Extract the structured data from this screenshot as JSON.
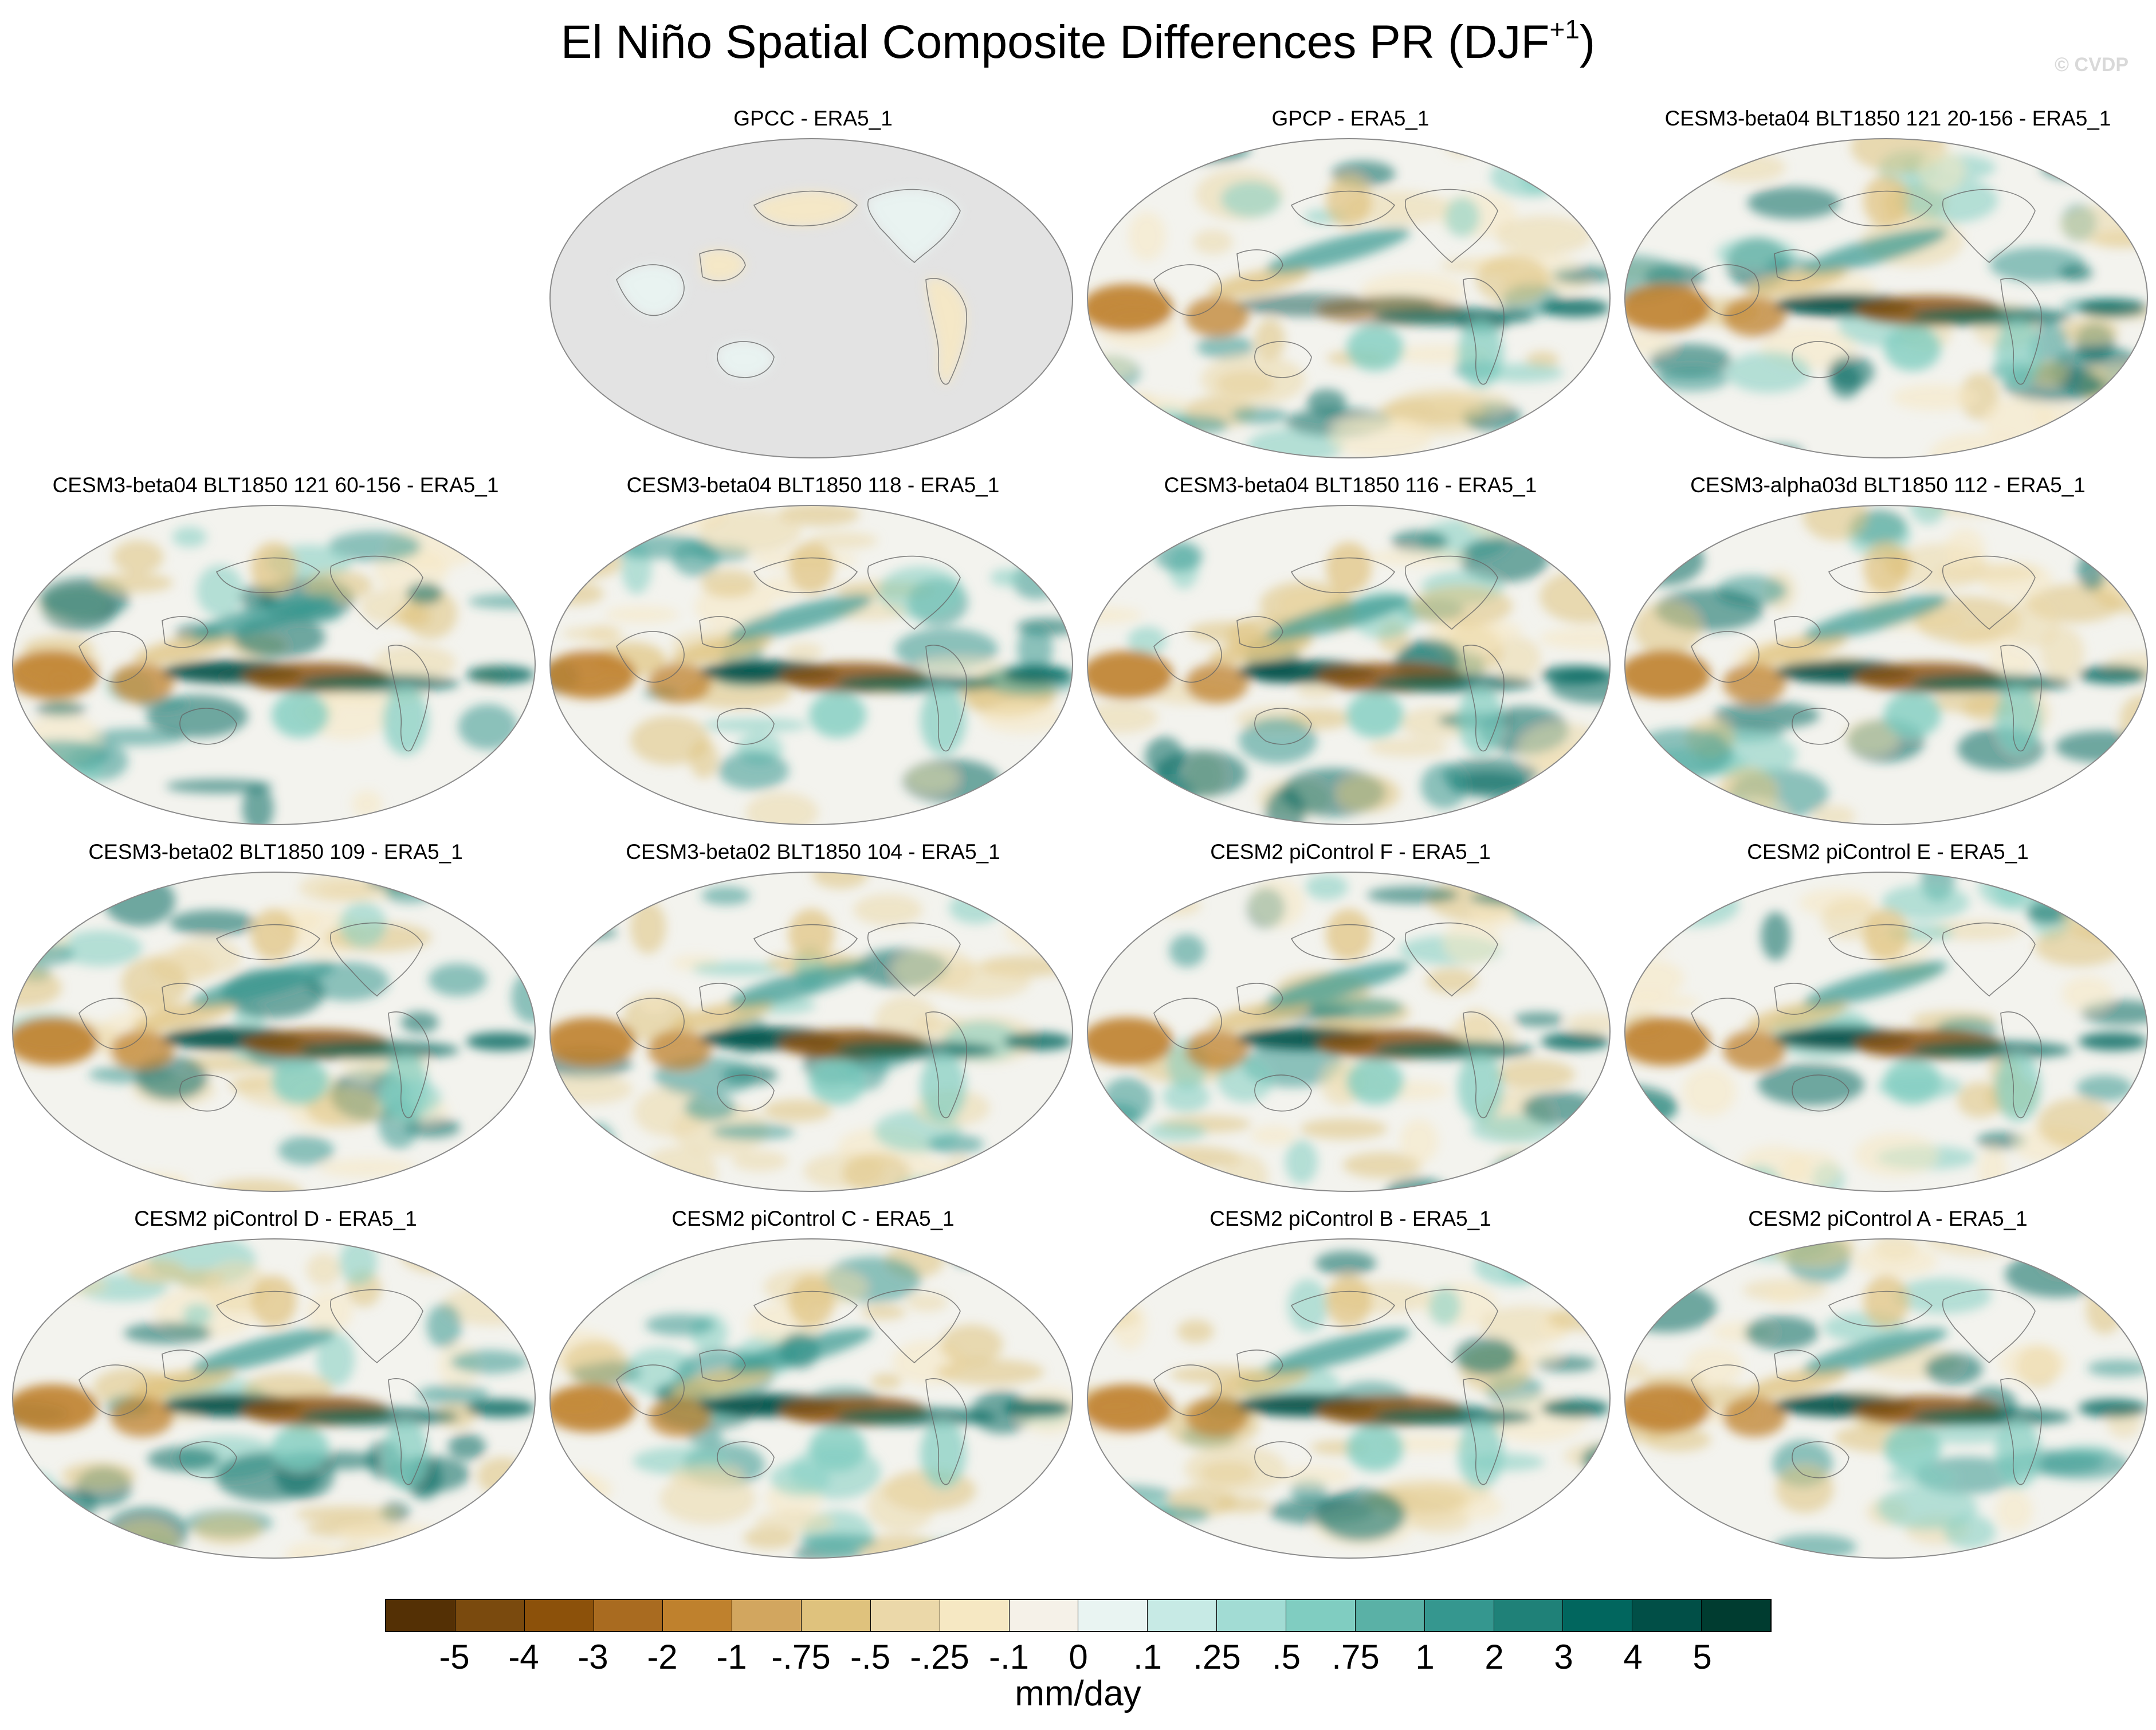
{
  "title": {
    "main": "El Niño Spatial Composite Differences PR (DJF",
    "superscript": "+1",
    "close": ")"
  },
  "watermark": "© CVDP",
  "panels": [
    {
      "title": "GPCC - ERA5_1",
      "land_only": true
    },
    {
      "title": "GPCP - ERA5_1"
    },
    {
      "title": "CESM3-beta04 BLT1850 121 20-156 - ERA5_1"
    },
    {
      "title": "CESM3-beta04 BLT1850 121 60-156 - ERA5_1"
    },
    {
      "title": "CESM3-beta04 BLT1850 118 - ERA5_1"
    },
    {
      "title": "CESM3-beta04 BLT1850 116 - ERA5_1"
    },
    {
      "title": "CESM3-alpha03d BLT1850 112 - ERA5_1"
    },
    {
      "title": "CESM3-beta02 BLT1850 109 - ERA5_1"
    },
    {
      "title": "CESM3-beta02 BLT1850 104 - ERA5_1"
    },
    {
      "title": "CESM2 piControl F - ERA5_1"
    },
    {
      "title": "CESM2 piControl E - ERA5_1"
    },
    {
      "title": "CESM2 piControl D - ERA5_1"
    },
    {
      "title": "CESM2 piControl C - ERA5_1"
    },
    {
      "title": "CESM2 piControl B - ERA5_1"
    },
    {
      "title": "CESM2 piControl A - ERA5_1"
    }
  ],
  "colorbar": {
    "colors": [
      "#543005",
      "#7a4a0e",
      "#8c510a",
      "#a96b20",
      "#bf812d",
      "#d2a65f",
      "#dfc27d",
      "#ebd8a9",
      "#f6e8c3",
      "#f5f1e8",
      "#e9f4f2",
      "#c7eae5",
      "#a2dcd4",
      "#80cdc1",
      "#5ab1a6",
      "#35978f",
      "#1f8178",
      "#01665e",
      "#014f47",
      "#003c30"
    ],
    "labels": [
      "-5",
      "-4",
      "-3",
      "-2",
      "-1",
      "-.75",
      "-.5",
      "-.25",
      "-.1",
      "0",
      ".1",
      ".25",
      ".5",
      ".75",
      "1",
      "2",
      "3",
      "4",
      "5"
    ],
    "units": "mm/day"
  }
}
